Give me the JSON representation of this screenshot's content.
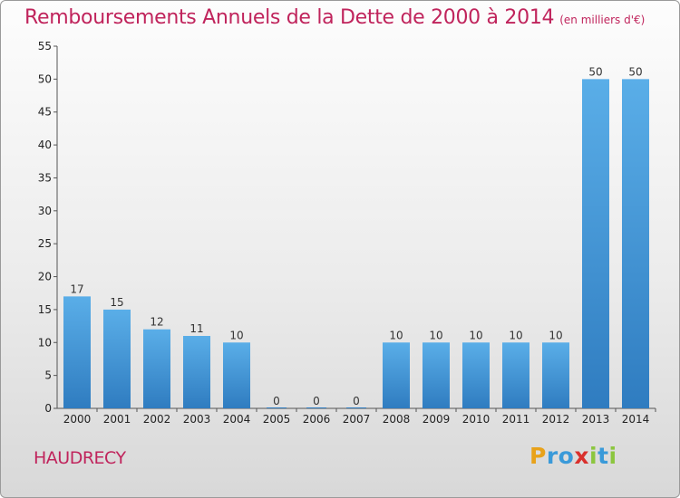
{
  "title": "Remboursements Annuels de la Dette de 2000 à 2014",
  "subtitle": "(en milliers d'€)",
  "commune": "HAUDRECY",
  "logo": {
    "letters": [
      "P",
      "r",
      "o",
      "x",
      "i",
      "t",
      "i"
    ],
    "colors": [
      "#e8a21a",
      "#3a9ad9",
      "#3a9ad9",
      "#d9302c",
      "#8cc63f",
      "#3a9ad9",
      "#8cc63f"
    ]
  },
  "colors": {
    "bar_top": "#5aaee8",
    "bar_bottom": "#2f7cc0",
    "title": "#c0245c"
  },
  "chart_data": {
    "type": "bar",
    "categories": [
      "2000",
      "2001",
      "2002",
      "2003",
      "2004",
      "2005",
      "2006",
      "2007",
      "2008",
      "2009",
      "2010",
      "2011",
      "2012",
      "2013",
      "2014"
    ],
    "values": [
      17,
      15,
      12,
      11,
      10,
      0,
      0,
      0,
      10,
      10,
      10,
      10,
      10,
      50,
      50
    ],
    "value_labels": [
      "17",
      "15",
      "12",
      "11",
      "10",
      "0",
      "0",
      "0",
      "10",
      "10",
      "10",
      "10",
      "10",
      "50",
      "50"
    ],
    "ylim": [
      0,
      55
    ],
    "yticks": [
      0,
      5,
      10,
      15,
      20,
      25,
      30,
      35,
      40,
      45,
      50,
      55
    ],
    "ytick_labels": [
      "0",
      "5",
      "10",
      "15",
      "20",
      "25",
      "30",
      "35",
      "40",
      "45",
      "50",
      "55"
    ],
    "grid": false
  }
}
